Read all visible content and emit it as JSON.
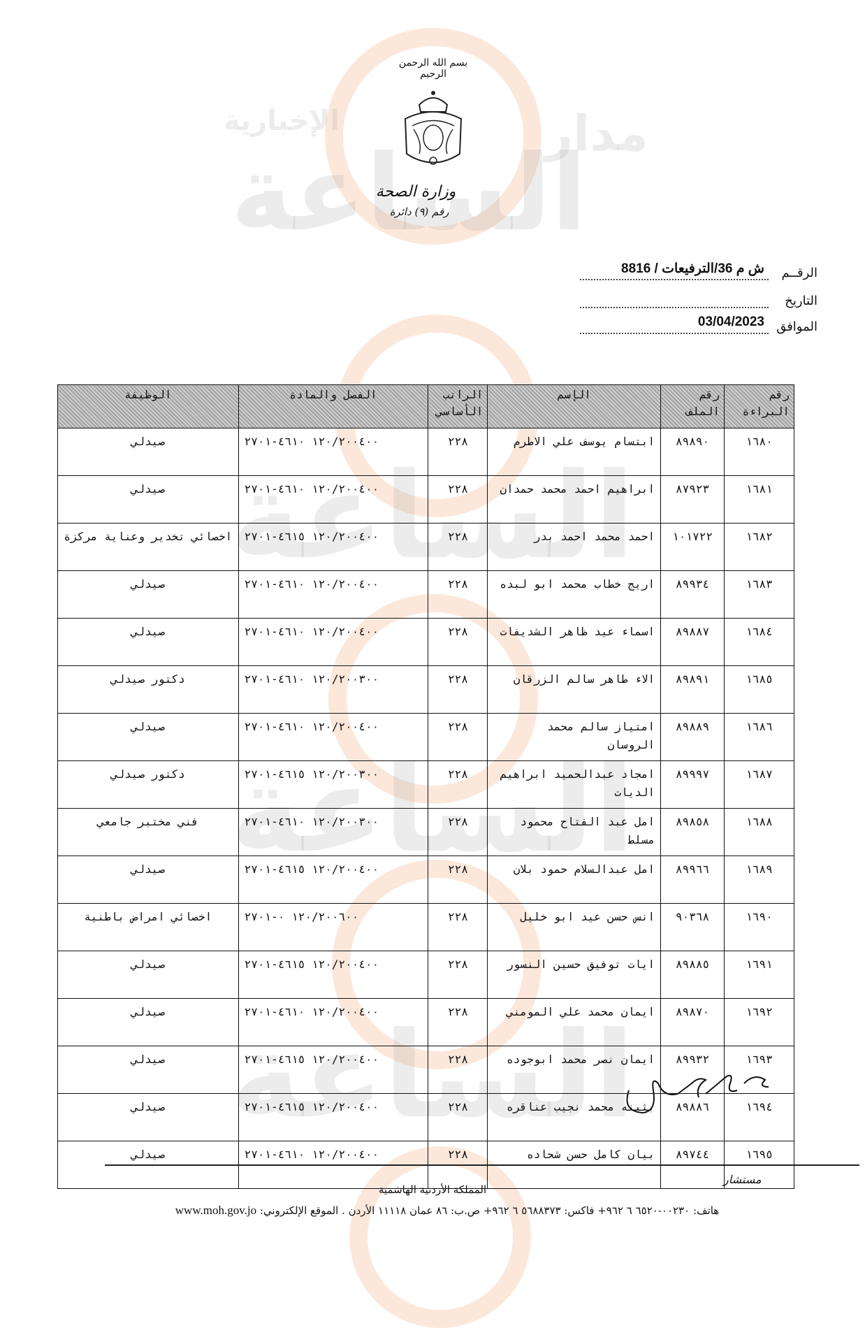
{
  "header": {
    "basmala": "بسم الله الرحمن الرحيم",
    "ministry": "وزارة الصحة",
    "ministry_sub": "رقم (٩) دائرة"
  },
  "watermark": {
    "brand": "الساعة",
    "brand_prefix": "مدار",
    "brand_suffix": "الإخبارية",
    "accent_color": "#f0965a"
  },
  "reference": {
    "number_label": "الرقــم",
    "number_value": "ش م 36/الترفيعات / 8816",
    "date_label": "التاريخ",
    "date_value": "",
    "corresponding_label": "الموافق",
    "corresponding_value": "03/04/2023"
  },
  "table": {
    "headers": [
      "رقم البراءة",
      "رقم الملف",
      "الإسم",
      "الراتب الأساسي",
      "الفصل والمادة",
      "الوظيفة"
    ],
    "rows": [
      {
        "num": "١٦٨٠",
        "file": "٨٩٨٩٠",
        "name": "ابتسام يوسف علي الاطرم",
        "salary": "٢٢٨",
        "class": "١٢٠/٢٠٠٤٠٠ ٤٦١٠-٢٧٠١",
        "job": "صيدلي"
      },
      {
        "num": "١٦٨١",
        "file": "٨٧٩٢٣",
        "name": "ابراهيم احمد محمد حمدان",
        "salary": "٢٢٨",
        "class": "١٢٠/٢٠٠٤٠٠ ٤٦١٠-٢٧٠١",
        "job": "صيدلي"
      },
      {
        "num": "١٦٨٢",
        "file": "١٠١٧٢٢",
        "name": "احمد محمد احمد بدر",
        "salary": "٢٢٨",
        "class": "١٢٠/٢٠٠٤٠٠ ٤٦١٥-٢٧٠١",
        "job": "اخصائي تخدير وعناية مركزة"
      },
      {
        "num": "١٦٨٣",
        "file": "٨٩٩٣٤",
        "name": "اريج خطاب محمد ابو لبده",
        "salary": "٢٢٨",
        "class": "١٢٠/٢٠٠٤٠٠ ٤٦١٠-٢٧٠١",
        "job": "صيدلي"
      },
      {
        "num": "١٦٨٤",
        "file": "٨٩٨٨٧",
        "name": "اسماء عيد ظاهر الشديفات",
        "salary": "٢٢٨",
        "class": "١٢٠/٢٠٠٤٠٠ ٤٦١٠-٢٧٠١",
        "job": "صيدلي"
      },
      {
        "num": "١٦٨٥",
        "file": "٨٩٨٩١",
        "name": "الاء طاهر سالم الزرقان",
        "salary": "٢٢٨",
        "class": "١٢٠/٢٠٠٣٠٠ ٤٦١٠-٢٧٠١",
        "job": "دكتور صيدلي"
      },
      {
        "num": "١٦٨٦",
        "file": "٨٩٨٨٩",
        "name": "امتياز سالم محمد الروسان",
        "salary": "٢٢٨",
        "class": "١٢٠/٢٠٠٤٠٠ ٤٦١٠-٢٧٠١",
        "job": "صيدلي"
      },
      {
        "num": "١٦٨٧",
        "file": "٨٩٩٩٧",
        "name": "امجاد عبدالحميد ابراهيم الديات",
        "salary": "٢٢٨",
        "class": "١٢٠/٢٠٠٣٠٠ ٤٦١٥-٢٧٠١",
        "job": "دكتور صيدلي"
      },
      {
        "num": "١٦٨٨",
        "file": "٨٩٨٥٨",
        "name": "امل عبد الفتاح محمود مسلط",
        "salary": "٢٢٨",
        "class": "١٢٠/٢٠٠٣٠٠ ٤٦١٠-٢٧٠١",
        "job": "فني مختبر جامعي"
      },
      {
        "num": "١٦٨٩",
        "file": "٨٩٩٦٦",
        "name": "امل عبدالسلام حمود بلان",
        "salary": "٢٢٨",
        "class": "١٢٠/٢٠٠٤٠٠ ٤٦١٥-٢٧٠١",
        "job": "صيدلي"
      },
      {
        "num": "١٦٩٠",
        "file": "٩٠٣٦٨",
        "name": "انس حسن عيد ابو خليل",
        "salary": "٢٢٨",
        "class": "١٢٠/٢٠٠٦٠٠ ٠-٢٧٠١",
        "job": "اخصائي امراض باطنية"
      },
      {
        "num": "١٦٩١",
        "file": "٨٩٨٨٥",
        "name": "ايات توفيق حسين النسور",
        "salary": "٢٢٨",
        "class": "١٢٠/٢٠٠٤٠٠ ٤٦١٥-٢٧٠١",
        "job": "صيدلي"
      },
      {
        "num": "١٦٩٢",
        "file": "٨٩٨٧٠",
        "name": "ايمان محمد علي المومني",
        "salary": "٢٢٨",
        "class": "١٢٠/٢٠٠٤٠٠ ٤٦١٠-٢٧٠١",
        "job": "صيدلي"
      },
      {
        "num": "١٦٩٣",
        "file": "٨٩٩٣٢",
        "name": "ايمان نصر محمد ابوجوده",
        "salary": "٢٢٨",
        "class": "١٢٠/٢٠٠٤٠٠ ٤٦١٥-٢٧٠١",
        "job": "صيدلي"
      },
      {
        "num": "١٦٩٤",
        "file": "٨٩٨٨٦",
        "name": "بثينه محمد نجيب عناقره",
        "salary": "٢٢٨",
        "class": "١٢٠/٢٠٠٤٠٠ ٤٦١٥-٢٧٠١",
        "job": "صيدلي"
      },
      {
        "num": "١٦٩٥",
        "file": "٨٩٧٤٤",
        "name": "بيان كامل حسن شحاده",
        "salary": "٢٢٨",
        "class": "١٢٠/٢٠٠٤٠٠ ٤٦١٠-٢٧٠١",
        "job": "صيدلي"
      }
    ]
  },
  "footer": {
    "initials": "مستشار",
    "country": "المملكة الأردنية الهاشمية",
    "contact": "هاتف: ٠٠٢٣٠-٦٥٢٠ ٦ ٩٦٢+   فاكس: ٥٦٨٨٣٧٣ ٦ ٩٦٢+   ص.ب: ٨٦ عمان ١١١١٨ الأردن . الموقع الإلكتروني: ",
    "website": "www.moh.gov.jo"
  }
}
